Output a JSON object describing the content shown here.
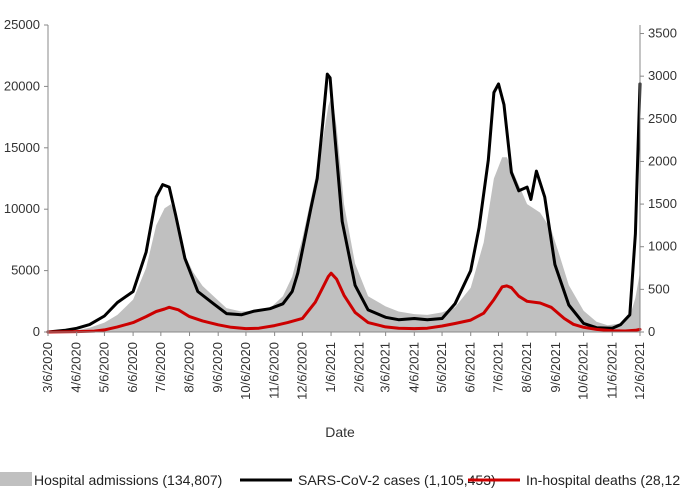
{
  "chart_data": {
    "type": "line",
    "xlabel": "Date",
    "x_ticks": [
      "3/6/2020",
      "4/6/2020",
      "5/6/2020",
      "6/6/2020",
      "7/6/2020",
      "8/6/2020",
      "9/6/2020",
      "10/6/2020",
      "11/6/2020",
      "12/6/2020",
      "1/6/2021",
      "2/6/2021",
      "3/6/2021",
      "4/6/2021",
      "5/6/2021",
      "6/6/2021",
      "7/6/2021",
      "8/6/2021",
      "9/6/2021",
      "10/6/2021",
      "11/6/2021",
      "12/6/2021"
    ],
    "y_left": {
      "min": 0,
      "max": 25000,
      "ticks": [
        0,
        5000,
        10000,
        15000,
        20000,
        25000
      ],
      "tick_labels": [
        "0",
        "5000",
        "10000",
        "15000",
        "20000",
        "25000"
      ]
    },
    "y_right": {
      "min": 0,
      "max": 3600,
      "ticks": [
        0,
        500,
        1000,
        1500,
        2000,
        2500,
        3000,
        3500
      ]
    },
    "grid": false,
    "legend_position": "bottom",
    "series": [
      {
        "name": "Hospital admissions (134,807)",
        "kind": "area",
        "axis": "right",
        "color": "#c0c0c0",
        "points": [
          [
            "3/6/2020",
            0
          ],
          [
            "3/25/2020",
            10
          ],
          [
            "4/6/2020",
            20
          ],
          [
            "4/20/2020",
            50
          ],
          [
            "5/6/2020",
            110
          ],
          [
            "5/20/2020",
            200
          ],
          [
            "6/6/2020",
            380
          ],
          [
            "6/20/2020",
            750
          ],
          [
            "7/1/2020",
            1250
          ],
          [
            "7/10/2020",
            1450
          ],
          [
            "7/17/2020",
            1500
          ],
          [
            "7/24/2020",
            1300
          ],
          [
            "8/1/2020",
            900
          ],
          [
            "8/10/2020",
            700
          ],
          [
            "8/20/2020",
            540
          ],
          [
            "9/1/2020",
            420
          ],
          [
            "9/15/2020",
            280
          ],
          [
            "10/1/2020",
            240
          ],
          [
            "10/15/2020",
            250
          ],
          [
            "11/1/2020",
            280
          ],
          [
            "11/15/2020",
            420
          ],
          [
            "11/25/2020",
            650
          ],
          [
            "12/6/2020",
            1100
          ],
          [
            "12/15/2020",
            1550
          ],
          [
            "12/25/2020",
            2050
          ],
          [
            "1/3/2021",
            2650
          ],
          [
            "1/7/2021",
            2780
          ],
          [
            "1/12/2021",
            2400
          ],
          [
            "1/20/2021",
            1500
          ],
          [
            "2/1/2021",
            800
          ],
          [
            "2/15/2021",
            420
          ],
          [
            "3/6/2021",
            300
          ],
          [
            "3/20/2021",
            240
          ],
          [
            "4/6/2021",
            210
          ],
          [
            "4/20/2021",
            200
          ],
          [
            "5/6/2021",
            230
          ],
          [
            "5/20/2021",
            290
          ],
          [
            "6/6/2021",
            520
          ],
          [
            "6/20/2021",
            1050
          ],
          [
            "7/1/2021",
            1800
          ],
          [
            "7/10/2021",
            2050
          ],
          [
            "7/15/2021",
            2050
          ],
          [
            "7/25/2021",
            1800
          ],
          [
            "8/6/2021",
            1500
          ],
          [
            "8/20/2021",
            1400
          ],
          [
            "9/1/2021",
            1200
          ],
          [
            "9/10/2021",
            900
          ],
          [
            "9/20/2021",
            550
          ],
          [
            "10/6/2021",
            250
          ],
          [
            "10/20/2021",
            120
          ],
          [
            "11/1/2021",
            80
          ],
          [
            "11/15/2021",
            100
          ],
          [
            "11/25/2021",
            180
          ],
          [
            "12/1/2021",
            400
          ],
          [
            "12/6/2021",
            700
          ]
        ]
      },
      {
        "name": "SARS-CoV-2 cases (1,105,453)",
        "kind": "line",
        "axis": "left",
        "color": "#000000",
        "points": [
          [
            "3/6/2020",
            0
          ],
          [
            "3/25/2020",
            150
          ],
          [
            "4/6/2020",
            300
          ],
          [
            "4/20/2020",
            600
          ],
          [
            "5/6/2020",
            1300
          ],
          [
            "5/20/2020",
            2400
          ],
          [
            "6/6/2020",
            3300
          ],
          [
            "6/20/2020",
            6500
          ],
          [
            "7/1/2020",
            11000
          ],
          [
            "7/8/2020",
            12000
          ],
          [
            "7/15/2020",
            11800
          ],
          [
            "7/22/2020",
            9500
          ],
          [
            "8/1/2020",
            6000
          ],
          [
            "8/15/2020",
            3300
          ],
          [
            "9/1/2020",
            2300
          ],
          [
            "9/15/2020",
            1500
          ],
          [
            "10/1/2020",
            1400
          ],
          [
            "10/15/2020",
            1700
          ],
          [
            "11/1/2020",
            1900
          ],
          [
            "11/15/2020",
            2300
          ],
          [
            "11/25/2020",
            3300
          ],
          [
            "12/1/2020",
            4800
          ],
          [
            "12/15/2020",
            10000
          ],
          [
            "12/22/2020",
            12500
          ],
          [
            "12/28/2020",
            17000
          ],
          [
            "1/2/2021",
            21000
          ],
          [
            "1/5/2021",
            20700
          ],
          [
            "1/10/2021",
            16000
          ],
          [
            "1/18/2021",
            9000
          ],
          [
            "2/1/2021",
            3800
          ],
          [
            "2/15/2021",
            1800
          ],
          [
            "3/6/2021",
            1200
          ],
          [
            "3/20/2021",
            1000
          ],
          [
            "4/6/2021",
            1100
          ],
          [
            "4/20/2021",
            1000
          ],
          [
            "5/6/2021",
            1100
          ],
          [
            "5/20/2021",
            2300
          ],
          [
            "6/6/2021",
            5000
          ],
          [
            "6/15/2021",
            8500
          ],
          [
            "6/25/2021",
            14000
          ],
          [
            "7/1/2021",
            19500
          ],
          [
            "7/6/2021",
            20200
          ],
          [
            "7/12/2021",
            18500
          ],
          [
            "7/20/2021",
            13000
          ],
          [
            "7/28/2021",
            11500
          ],
          [
            "8/6/2021",
            11800
          ],
          [
            "8/10/2021",
            10800
          ],
          [
            "8/16/2021",
            13100
          ],
          [
            "8/25/2021",
            11000
          ],
          [
            "9/5/2021",
            5500
          ],
          [
            "9/20/2021",
            2200
          ],
          [
            "10/6/2021",
            700
          ],
          [
            "10/20/2021",
            350
          ],
          [
            "11/6/2021",
            300
          ],
          [
            "11/15/2021",
            600
          ],
          [
            "11/25/2021",
            1400
          ],
          [
            "12/1/2021",
            8000
          ],
          [
            "12/6/2021",
            20200
          ]
        ]
      },
      {
        "name": "In-hospital deaths (28,12",
        "kind": "line",
        "axis": "right",
        "color": "#cc0000",
        "points": [
          [
            "3/6/2020",
            0
          ],
          [
            "4/6/2020",
            5
          ],
          [
            "4/25/2020",
            10
          ],
          [
            "5/6/2020",
            25
          ],
          [
            "5/20/2020",
            60
          ],
          [
            "6/6/2020",
            110
          ],
          [
            "6/20/2020",
            180
          ],
          [
            "7/1/2020",
            240
          ],
          [
            "7/10/2020",
            270
          ],
          [
            "7/15/2020",
            290
          ],
          [
            "7/25/2020",
            260
          ],
          [
            "8/6/2020",
            180
          ],
          [
            "8/20/2020",
            130
          ],
          [
            "9/6/2020",
            85
          ],
          [
            "9/20/2020",
            55
          ],
          [
            "10/6/2020",
            40
          ],
          [
            "10/20/2020",
            45
          ],
          [
            "11/6/2020",
            75
          ],
          [
            "11/20/2020",
            110
          ],
          [
            "12/6/2020",
            160
          ],
          [
            "12/20/2020",
            350
          ],
          [
            "12/28/2020",
            520
          ],
          [
            "1/3/2021",
            650
          ],
          [
            "1/6/2021",
            690
          ],
          [
            "1/12/2021",
            620
          ],
          [
            "1/20/2021",
            430
          ],
          [
            "2/1/2021",
            230
          ],
          [
            "2/15/2021",
            110
          ],
          [
            "3/6/2021",
            60
          ],
          [
            "3/20/2021",
            45
          ],
          [
            "4/6/2021",
            40
          ],
          [
            "4/20/2021",
            45
          ],
          [
            "5/6/2021",
            70
          ],
          [
            "5/20/2021",
            100
          ],
          [
            "6/6/2021",
            140
          ],
          [
            "6/20/2021",
            220
          ],
          [
            "7/1/2021",
            380
          ],
          [
            "7/10/2021",
            530
          ],
          [
            "7/15/2021",
            540
          ],
          [
            "7/20/2021",
            520
          ],
          [
            "7/28/2021",
            420
          ],
          [
            "8/6/2021",
            360
          ],
          [
            "8/20/2021",
            340
          ],
          [
            "9/1/2021",
            290
          ],
          [
            "9/15/2021",
            160
          ],
          [
            "9/25/2021",
            90
          ],
          [
            "10/6/2021",
            55
          ],
          [
            "10/20/2021",
            30
          ],
          [
            "11/6/2021",
            15
          ],
          [
            "11/20/2021",
            12
          ],
          [
            "12/1/2021",
            20
          ],
          [
            "12/6/2021",
            30
          ]
        ]
      }
    ]
  }
}
